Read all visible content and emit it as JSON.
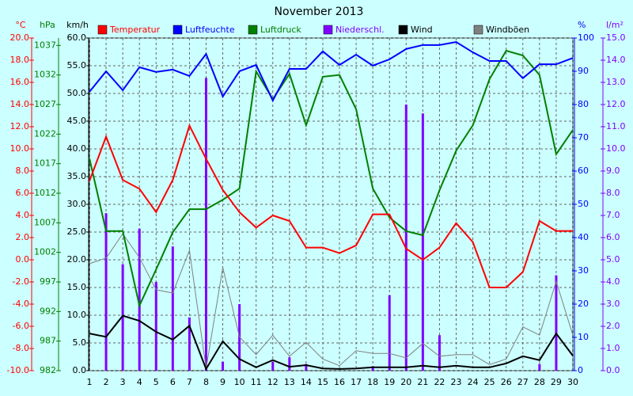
{
  "chart_data": {
    "type": "combo",
    "title": "November 2013",
    "categories": [
      "1",
      "2",
      "3",
      "4",
      "5",
      "6",
      "7",
      "8",
      "9",
      "10",
      "11",
      "12",
      "13",
      "14",
      "15",
      "16",
      "17",
      "18",
      "19",
      "20",
      "21",
      "22",
      "23",
      "24",
      "25",
      "26",
      "27",
      "28",
      "29",
      "30"
    ],
    "axes": [
      {
        "label": "°C",
        "color": "#ff0000",
        "lim": [
          -10,
          20
        ],
        "ticks": [
          {
            "value": -10,
            "label": "-10.0"
          },
          {
            "value": -8,
            "label": "-8.0"
          },
          {
            "value": -6,
            "label": "-6.0"
          },
          {
            "value": -4,
            "label": "-4.0"
          },
          {
            "value": -2,
            "label": "-2.0"
          },
          {
            "value": 0,
            "label": "0.0"
          },
          {
            "value": 2,
            "label": "2.0"
          },
          {
            "value": 4,
            "label": "4.0"
          },
          {
            "value": 6,
            "label": "6.0"
          },
          {
            "value": 8,
            "label": "8.0"
          },
          {
            "value": 10,
            "label": "10.0"
          },
          {
            "value": 12,
            "label": "12.0"
          },
          {
            "value": 14,
            "label": "14.0"
          },
          {
            "value": 16,
            "label": "16.0"
          },
          {
            "value": 18,
            "label": "18.0"
          },
          {
            "value": 20,
            "label": "20.0"
          }
        ]
      },
      {
        "label": "hPa",
        "color": "#008000",
        "lim": [
          982,
          1038.25
        ],
        "ticks": [
          982,
          987,
          992,
          997,
          1002,
          1007,
          1012,
          1017,
          1022,
          1027,
          1032,
          1037
        ]
      },
      {
        "label": "km/h",
        "color": "#000000",
        "lim": [
          0,
          60
        ],
        "grid": true,
        "ticks": [
          {
            "value": 0,
            "label": "0.0"
          },
          {
            "value": 5,
            "label": "5.0"
          },
          {
            "value": 10,
            "label": "10.0"
          },
          {
            "value": 15,
            "label": "15.0"
          },
          {
            "value": 20,
            "label": "20.0"
          },
          {
            "value": 25,
            "label": "25.0"
          },
          {
            "value": 30,
            "label": "30.0"
          },
          {
            "value": 35,
            "label": "35.0"
          },
          {
            "value": 40,
            "label": "40.0"
          },
          {
            "value": 45,
            "label": "45.0"
          },
          {
            "value": 50,
            "label": "50.0"
          },
          {
            "value": 55,
            "label": "55.0"
          },
          {
            "value": 60,
            "label": "60.0"
          }
        ]
      },
      {
        "label": "%",
        "color": "#0000ff",
        "lim": [
          0,
          100
        ],
        "ticks": [
          0,
          10,
          20,
          30,
          40,
          50,
          60,
          70,
          80,
          90,
          100
        ]
      },
      {
        "label": "l/m²",
        "color": "#8000ff",
        "lim": [
          0,
          15
        ],
        "ticks": [
          {
            "value": 0,
            "label": "0.0"
          },
          {
            "value": 1,
            "label": "1.0"
          },
          {
            "value": 2,
            "label": "2.0"
          },
          {
            "value": 3,
            "label": "3.0"
          },
          {
            "value": 4,
            "label": "4.0"
          },
          {
            "value": 5,
            "label": "5.0"
          },
          {
            "value": 6,
            "label": "6.0"
          },
          {
            "value": 7,
            "label": "7.0"
          },
          {
            "value": 8,
            "label": "8.0"
          },
          {
            "value": 9,
            "label": "9.0"
          },
          {
            "value": 10,
            "label": "10.0"
          },
          {
            "value": 11,
            "label": "11.0"
          },
          {
            "value": 12,
            "label": "12.0"
          },
          {
            "value": 13,
            "label": "13.0"
          },
          {
            "value": 14,
            "label": "14.0"
          },
          {
            "value": 15,
            "label": "15.0"
          }
        ]
      }
    ],
    "series": [
      {
        "name": "Temperatur",
        "color": "#ff0000",
        "type": "line",
        "axis": 0,
        "values": [
          7.1,
          11.1,
          7.2,
          6.4,
          4.3,
          7.2,
          12.1,
          9.1,
          6.3,
          4.3,
          2.9,
          4.0,
          3.5,
          1.1,
          1.1,
          0.6,
          1.3,
          4.1,
          4.1,
          1.0,
          0.0,
          1.1,
          3.3,
          1.6,
          -2.5,
          -2.5,
          -1.1,
          3.5,
          2.6,
          2.6
        ]
      },
      {
        "name": "Luftfeuchte",
        "color": "#0000ff",
        "type": "line",
        "axis": 3,
        "values": [
          83.8,
          90,
          84.3,
          91.2,
          89.8,
          90.5,
          88.6,
          95.2,
          82.4,
          90,
          91.9,
          81.2,
          90.7,
          90.7,
          96,
          91.9,
          95,
          91.7,
          93.6,
          96.7,
          97.9,
          97.9,
          98.8,
          95.7,
          93.1,
          93.1,
          87.9,
          92.1,
          92.1,
          94
        ]
      },
      {
        "name": "Luftdruck",
        "color": "#008000",
        "type": "line",
        "axis": 1,
        "values": [
          1017.9,
          1005.6,
          1005.6,
          993,
          999.1,
          1005.4,
          1009.3,
          1009.3,
          1010.9,
          1012.8,
          1032.6,
          1027.9,
          1032.2,
          1023.5,
          1031.7,
          1032,
          1026.2,
          1012.8,
          1007.9,
          1005.6,
          1004.9,
          1012.5,
          1019.2,
          1023.5,
          1031.3,
          1036.1,
          1035.3,
          1032,
          1018.6,
          1022.7
        ]
      },
      {
        "name": "Niederschl.",
        "color": "#8000ff",
        "type": "bar",
        "axis": 4,
        "values": [
          0,
          7.1,
          4.8,
          6.4,
          4.0,
          5.6,
          2.4,
          13.2,
          0.4,
          3.0,
          0,
          0.4,
          0.6,
          0.3,
          0,
          0,
          0,
          0.2,
          3.4,
          12.0,
          11.6,
          1.6,
          0,
          0,
          0,
          0,
          0,
          0.3,
          4.3,
          0
        ]
      },
      {
        "name": "Wind",
        "color": "#000000",
        "type": "line",
        "axis": 2,
        "values": [
          6.7,
          6.1,
          9.9,
          9.0,
          7.0,
          5.6,
          8.1,
          0.3,
          5.3,
          2.1,
          0.6,
          1.9,
          0.7,
          1.0,
          0.4,
          0.3,
          0.4,
          0.6,
          0.6,
          0.6,
          0.9,
          0.6,
          0.9,
          0.6,
          0.6,
          1.3,
          2.6,
          1.9,
          6.7,
          2.7
        ]
      },
      {
        "name": "Windböen",
        "color": "#808080",
        "type": "line",
        "axis": 2,
        "values": [
          19.3,
          20.3,
          24.7,
          20.4,
          14.6,
          14.0,
          21.7,
          0.4,
          18.6,
          6.1,
          2.9,
          6.4,
          2.6,
          5.1,
          2.1,
          0.9,
          3.6,
          3.1,
          3.1,
          2.3,
          4.9,
          2.6,
          2.9,
          2.9,
          1.1,
          2.1,
          7.9,
          6.4,
          16.1,
          6.4
        ]
      }
    ]
  }
}
